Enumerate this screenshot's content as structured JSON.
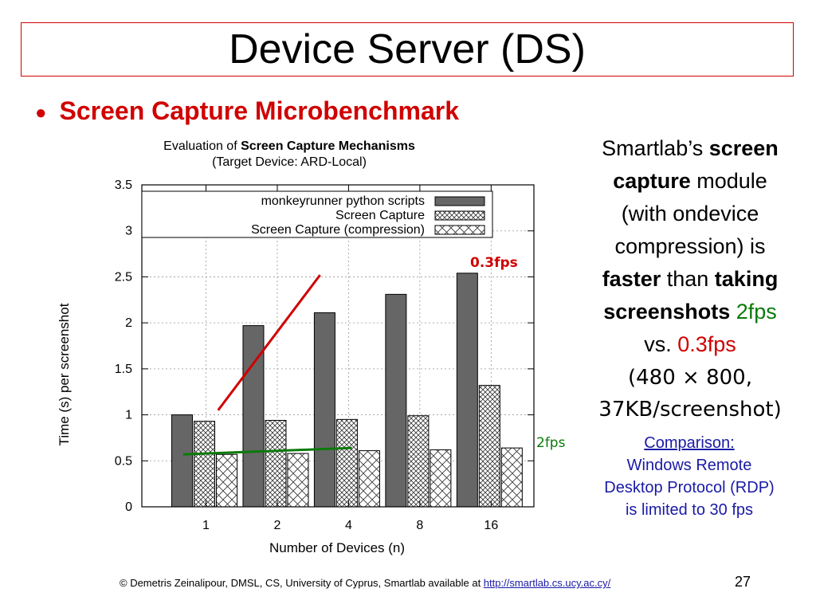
{
  "slide": {
    "title": "Device Server (DS)",
    "bullet": "Screen Capture Microbenchmark",
    "page_number": "27"
  },
  "right_text": {
    "l1a": "Smartlab’s ",
    "l1b": "screen",
    "l2a": "capture",
    "l2b": " module",
    "l3": "(with ondevice",
    "l4": "compression) is",
    "l5a": "faster",
    "l5b": " than ",
    "l5c": "taking",
    "l6a": "screenshots",
    "l6b": " 2fps",
    "l7a": "vs. ",
    "l7b": "0.3fps",
    "l8": "(480 × 800,",
    "l9": "37KB/screenshot)"
  },
  "comparison": {
    "head": "Comparison:",
    "l1": "Windows Remote",
    "l2": "Desktop Protocol (RDP)",
    "l3": "is limited to 30 fps"
  },
  "annotations": {
    "red": "0.3fps",
    "green": "2fps"
  },
  "footer": {
    "text": "© Demetris Zeinalipour, DMSL, CS, University of Cyprus, Smartlab available at ",
    "link": "http://smartlab.cs.ucy.ac.cy/"
  },
  "colors": {
    "title_border": "#d00000",
    "accent_red": "#d00000",
    "accent_green": "#0a7a0a",
    "link_blue": "#1a1aa6",
    "bar_dark": "#666666"
  },
  "chart_data": {
    "type": "bar",
    "title_prefix": "Evaluation of ",
    "title_bold": "Screen Capture Mechanisms",
    "subtitle": "(Target Device: ARD-Local)",
    "xlabel": "Number of Devices (n)",
    "ylabel": "Time (s) per screenshot",
    "categories": [
      "1",
      "2",
      "4",
      "8",
      "16"
    ],
    "ylim": [
      0,
      3.5
    ],
    "yticks": [
      "0",
      "0.5",
      "1",
      "1.5",
      "2",
      "2.5",
      "3",
      "3.5"
    ],
    "legend_position": "top",
    "grid": true,
    "series": [
      {
        "name": "monkeyrunner python scripts",
        "pattern": "solid",
        "values": [
          1.0,
          1.97,
          2.11,
          2.31,
          2.54
        ]
      },
      {
        "name": "Screen Capture",
        "pattern": "dense-crosshatch",
        "values": [
          0.93,
          0.94,
          0.95,
          0.99,
          1.32
        ]
      },
      {
        "name": "Screen Capture (compression)",
        "pattern": "crosshatch",
        "values": [
          0.57,
          0.58,
          0.61,
          0.62,
          0.64
        ]
      }
    ],
    "trend_lines": [
      {
        "label": "0.3fps",
        "color": "#d00000",
        "from": [
          1.07,
          1.05
        ],
        "to": [
          2.5,
          2.52
        ]
      },
      {
        "label": "2fps",
        "color": "#0a7a0a",
        "from": [
          0.58,
          0.57
        ],
        "to": [
          2.5,
          0.64
        ]
      }
    ]
  }
}
